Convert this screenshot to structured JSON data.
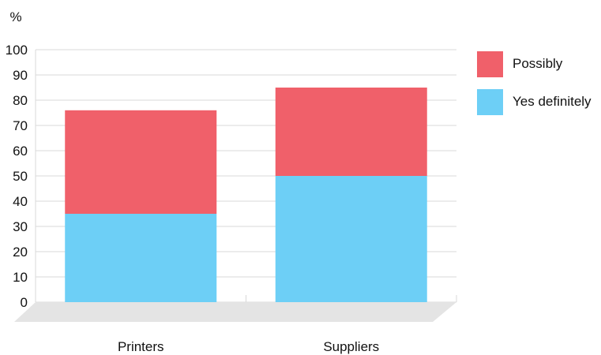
{
  "chart_data": {
    "type": "bar",
    "stacked": true,
    "unit_label": "%",
    "categories": [
      "Printers",
      "Suppliers"
    ],
    "series": [
      {
        "name": "Yes definitely",
        "values": [
          35,
          50
        ],
        "color": "#6dcff6"
      },
      {
        "name": "Possibly",
        "values": [
          41,
          35
        ],
        "color": "#f0606a"
      }
    ],
    "ylim": [
      0,
      100
    ],
    "yticks": [
      0,
      10,
      20,
      30,
      40,
      50,
      60,
      70,
      80,
      90,
      100
    ],
    "grid": true,
    "legend_position": "right"
  },
  "legend": [
    {
      "label": "Possibly",
      "color": "#f0606a"
    },
    {
      "label": "Yes definitely",
      "color": "#6dcff6"
    }
  ]
}
